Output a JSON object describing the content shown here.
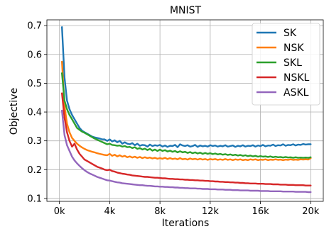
{
  "chart_data": {
    "type": "line",
    "title": "MNIST",
    "xlabel": "Iterations",
    "ylabel": "Objective",
    "xlim": [
      -1000,
      21000
    ],
    "ylim": [
      0.09,
      0.72
    ],
    "xticks": [
      0,
      4000,
      8000,
      12000,
      16000,
      20000
    ],
    "xtick_labels": [
      "0k",
      "4k",
      "8k",
      "12k",
      "16k",
      "20k"
    ],
    "yticks": [
      0.1,
      0.2,
      0.3,
      0.4,
      0.5,
      0.6,
      0.7
    ],
    "ytick_labels": [
      "0.1",
      "0.2",
      "0.3",
      "0.4",
      "0.5",
      "0.6",
      "0.7"
    ],
    "grid": true,
    "legend_position": "top-right",
    "x": [
      200,
      400,
      600,
      800,
      1000,
      1200,
      1400,
      1600,
      1800,
      2000,
      2200,
      2400,
      2600,
      2800,
      3000,
      3200,
      3400,
      3600,
      3800,
      4000,
      4200,
      4400,
      4600,
      4800,
      5000,
      5200,
      5400,
      5600,
      5800,
      6000,
      6200,
      6400,
      6600,
      6800,
      7000,
      7200,
      7400,
      7600,
      7800,
      8000,
      8200,
      8400,
      8600,
      8800,
      9000,
      9200,
      9400,
      9600,
      9800,
      10000,
      10200,
      10400,
      10600,
      10800,
      11000,
      11200,
      11400,
      11600,
      11800,
      12000,
      12200,
      12400,
      12600,
      12800,
      13000,
      13200,
      13400,
      13600,
      13800,
      14000,
      14200,
      14400,
      14600,
      14800,
      15000,
      15200,
      15400,
      15600,
      15800,
      16000,
      16200,
      16400,
      16600,
      16800,
      17000,
      17200,
      17400,
      17600,
      17800,
      18000,
      18200,
      18400,
      18600,
      18800,
      19000,
      19200,
      19400,
      19600,
      19800,
      20000
    ],
    "series": [
      {
        "name": "SK",
        "color": "#1f77b4",
        "values": [
          0.695,
          0.52,
          0.44,
          0.41,
          0.39,
          0.375,
          0.36,
          0.345,
          0.335,
          0.33,
          0.325,
          0.32,
          0.315,
          0.312,
          0.31,
          0.308,
          0.305,
          0.305,
          0.3,
          0.305,
          0.298,
          0.302,
          0.295,
          0.3,
          0.29,
          0.295,
          0.29,
          0.288,
          0.292,
          0.285,
          0.29,
          0.283,
          0.286,
          0.285,
          0.28,
          0.287,
          0.282,
          0.285,
          0.283,
          0.286,
          0.28,
          0.284,
          0.279,
          0.283,
          0.282,
          0.286,
          0.278,
          0.288,
          0.284,
          0.282,
          0.285,
          0.28,
          0.282,
          0.286,
          0.279,
          0.284,
          0.281,
          0.283,
          0.28,
          0.285,
          0.282,
          0.284,
          0.28,
          0.283,
          0.281,
          0.285,
          0.28,
          0.282,
          0.284,
          0.279,
          0.283,
          0.281,
          0.285,
          0.28,
          0.283,
          0.282,
          0.285,
          0.28,
          0.284,
          0.282,
          0.286,
          0.281,
          0.284,
          0.283,
          0.287,
          0.282,
          0.285,
          0.284,
          0.288,
          0.283,
          0.286,
          0.285,
          0.288,
          0.284,
          0.287,
          0.286,
          0.289,
          0.287,
          0.288,
          0.288
        ]
      },
      {
        "name": "NSK",
        "color": "#ff7f0e",
        "values": [
          0.575,
          0.42,
          0.36,
          0.33,
          0.31,
          0.3,
          0.29,
          0.283,
          0.277,
          0.272,
          0.268,
          0.265,
          0.262,
          0.26,
          0.257,
          0.255,
          0.253,
          0.251,
          0.25,
          0.255,
          0.248,
          0.252,
          0.246,
          0.25,
          0.245,
          0.248,
          0.243,
          0.246,
          0.242,
          0.245,
          0.241,
          0.244,
          0.24,
          0.243,
          0.24,
          0.242,
          0.239,
          0.241,
          0.238,
          0.24,
          0.238,
          0.241,
          0.237,
          0.24,
          0.237,
          0.239,
          0.236,
          0.24,
          0.236,
          0.238,
          0.235,
          0.239,
          0.236,
          0.238,
          0.235,
          0.238,
          0.235,
          0.237,
          0.234,
          0.237,
          0.235,
          0.237,
          0.234,
          0.236,
          0.234,
          0.237,
          0.234,
          0.236,
          0.233,
          0.236,
          0.234,
          0.236,
          0.233,
          0.235,
          0.233,
          0.236,
          0.234,
          0.236,
          0.233,
          0.235,
          0.234,
          0.236,
          0.233,
          0.235,
          0.234,
          0.236,
          0.234,
          0.235,
          0.233,
          0.235,
          0.234,
          0.236,
          0.234,
          0.235,
          0.234,
          0.236,
          0.235,
          0.236,
          0.235,
          0.24
        ]
      },
      {
        "name": "SKL",
        "color": "#2ca02c",
        "values": [
          0.535,
          0.44,
          0.41,
          0.39,
          0.375,
          0.36,
          0.345,
          0.338,
          0.332,
          0.328,
          0.323,
          0.318,
          0.313,
          0.308,
          0.304,
          0.3,
          0.296,
          0.292,
          0.288,
          0.29,
          0.286,
          0.285,
          0.283,
          0.284,
          0.28,
          0.282,
          0.278,
          0.279,
          0.275,
          0.278,
          0.272,
          0.275,
          0.27,
          0.273,
          0.268,
          0.272,
          0.266,
          0.27,
          0.265,
          0.27,
          0.265,
          0.268,
          0.263,
          0.266,
          0.262,
          0.265,
          0.26,
          0.264,
          0.26,
          0.262,
          0.258,
          0.261,
          0.257,
          0.26,
          0.256,
          0.259,
          0.255,
          0.258,
          0.255,
          0.257,
          0.254,
          0.256,
          0.253,
          0.255,
          0.252,
          0.254,
          0.251,
          0.253,
          0.25,
          0.252,
          0.249,
          0.251,
          0.248,
          0.25,
          0.247,
          0.249,
          0.246,
          0.248,
          0.245,
          0.247,
          0.245,
          0.246,
          0.244,
          0.246,
          0.243,
          0.245,
          0.243,
          0.244,
          0.242,
          0.244,
          0.242,
          0.243,
          0.241,
          0.243,
          0.241,
          0.242,
          0.241,
          0.242,
          0.241,
          0.243
        ]
      },
      {
        "name": "NSKL",
        "color": "#d62728",
        "values": [
          0.465,
          0.38,
          0.33,
          0.3,
          0.28,
          0.29,
          0.27,
          0.255,
          0.245,
          0.235,
          0.23,
          0.225,
          0.22,
          0.215,
          0.21,
          0.207,
          0.204,
          0.2,
          0.198,
          0.2,
          0.195,
          0.193,
          0.19,
          0.188,
          0.186,
          0.185,
          0.183,
          0.182,
          0.18,
          0.179,
          0.178,
          0.177,
          0.176,
          0.175,
          0.175,
          0.174,
          0.173,
          0.172,
          0.172,
          0.171,
          0.17,
          0.17,
          0.169,
          0.168,
          0.168,
          0.167,
          0.167,
          0.166,
          0.166,
          0.165,
          0.165,
          0.164,
          0.164,
          0.163,
          0.163,
          0.162,
          0.162,
          0.161,
          0.161,
          0.16,
          0.16,
          0.159,
          0.159,
          0.158,
          0.158,
          0.157,
          0.157,
          0.156,
          0.156,
          0.155,
          0.155,
          0.154,
          0.154,
          0.153,
          0.153,
          0.152,
          0.152,
          0.152,
          0.151,
          0.151,
          0.151,
          0.15,
          0.15,
          0.15,
          0.149,
          0.149,
          0.149,
          0.148,
          0.148,
          0.148,
          0.147,
          0.147,
          0.147,
          0.146,
          0.146,
          0.146,
          0.146,
          0.145,
          0.145,
          0.145
        ]
      },
      {
        "name": "ASKL",
        "color": "#9467bd",
        "values": [
          0.405,
          0.32,
          0.285,
          0.265,
          0.245,
          0.232,
          0.222,
          0.213,
          0.205,
          0.198,
          0.192,
          0.187,
          0.183,
          0.179,
          0.175,
          0.172,
          0.169,
          0.166,
          0.163,
          0.162,
          0.16,
          0.158,
          0.156,
          0.155,
          0.153,
          0.152,
          0.151,
          0.15,
          0.149,
          0.148,
          0.147,
          0.146,
          0.146,
          0.145,
          0.144,
          0.144,
          0.143,
          0.142,
          0.142,
          0.141,
          0.141,
          0.14,
          0.14,
          0.139,
          0.139,
          0.138,
          0.138,
          0.137,
          0.137,
          0.136,
          0.136,
          0.135,
          0.135,
          0.135,
          0.134,
          0.134,
          0.133,
          0.133,
          0.133,
          0.132,
          0.132,
          0.132,
          0.131,
          0.131,
          0.131,
          0.13,
          0.13,
          0.13,
          0.129,
          0.129,
          0.129,
          0.128,
          0.128,
          0.128,
          0.128,
          0.127,
          0.127,
          0.127,
          0.127,
          0.126,
          0.126,
          0.126,
          0.126,
          0.125,
          0.125,
          0.125,
          0.125,
          0.125,
          0.124,
          0.124,
          0.124,
          0.124,
          0.124,
          0.123,
          0.123,
          0.123,
          0.123,
          0.123,
          0.122,
          0.122
        ]
      }
    ]
  }
}
